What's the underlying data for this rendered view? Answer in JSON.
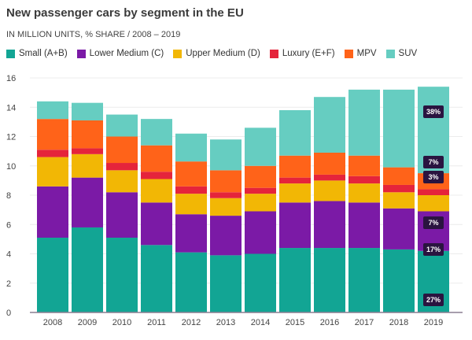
{
  "chart_data": {
    "type": "bar",
    "stacked": true,
    "title": "New passenger cars by segment in the EU",
    "subtitle": "IN MILLION UNITS, % SHARE / 2008 – 2019",
    "xlabel": "",
    "ylabel": "",
    "ylim": [
      0,
      16
    ],
    "yticks": [
      0,
      2,
      4,
      6,
      8,
      10,
      12,
      14,
      16
    ],
    "grid": true,
    "legend_position": "top-left",
    "categories": [
      "2008",
      "2009",
      "2010",
      "2011",
      "2012",
      "2013",
      "2014",
      "2015",
      "2016",
      "2017",
      "2018",
      "2019"
    ],
    "series": [
      {
        "name": "Small (A+B)",
        "color": "#12a594",
        "values": [
          5.1,
          5.8,
          5.1,
          4.6,
          4.1,
          3.9,
          4.0,
          4.4,
          4.4,
          4.4,
          4.3,
          4.2
        ]
      },
      {
        "name": "Lower Medium (C)",
        "color": "#7b1aa6",
        "values": [
          3.5,
          3.4,
          3.1,
          2.9,
          2.6,
          2.7,
          2.9,
          3.1,
          3.2,
          3.1,
          2.8,
          2.7
        ]
      },
      {
        "name": "Upper Medium (D)",
        "color": "#f2b705",
        "values": [
          2.0,
          1.6,
          1.5,
          1.6,
          1.4,
          1.2,
          1.2,
          1.3,
          1.4,
          1.3,
          1.1,
          1.1
        ]
      },
      {
        "name": "Luxury (E+F)",
        "color": "#e5243b",
        "values": [
          0.5,
          0.4,
          0.5,
          0.5,
          0.5,
          0.4,
          0.4,
          0.4,
          0.4,
          0.5,
          0.5,
          0.4
        ]
      },
      {
        "name": "MPV",
        "color": "#ff6319",
        "values": [
          2.1,
          1.9,
          1.8,
          1.8,
          1.7,
          1.5,
          1.5,
          1.5,
          1.5,
          1.4,
          1.2,
          1.1
        ]
      },
      {
        "name": "SUV",
        "color": "#66cdc1",
        "values": [
          1.2,
          1.2,
          1.5,
          1.8,
          1.9,
          2.1,
          2.6,
          3.1,
          3.8,
          4.5,
          5.3,
          5.9
        ]
      }
    ],
    "annotations": {
      "category": "2019",
      "labels": [
        "27%",
        "17%",
        "7%",
        "3%",
        "7%",
        "38%"
      ]
    }
  }
}
